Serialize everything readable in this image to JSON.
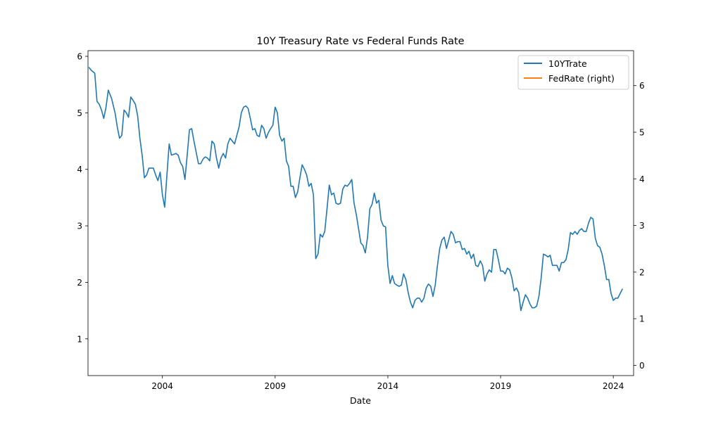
{
  "chart_data": {
    "type": "line",
    "title": "10Y Treasury Rate vs Federal Funds Rate",
    "xlabel": "Date",
    "ylabel": "",
    "x_ticks": [
      2004,
      2009,
      2014,
      2019,
      2024
    ],
    "xlim": [
      2000.7,
      2024.9
    ],
    "y_left": {
      "ylim": [
        0.35,
        6.1
      ],
      "ticks": [
        1,
        2,
        3,
        4,
        5,
        6
      ]
    },
    "y_right": {
      "ylim": [
        -0.22,
        6.75
      ],
      "ticks": [
        0,
        1,
        2,
        3,
        4,
        5,
        6
      ]
    },
    "legend": {
      "position": "top-right"
    },
    "grid": false,
    "series": [
      {
        "name": "10YTrate",
        "axis": "left",
        "color": "#1f77b4",
        "points": [
          [
            2000.75,
            5.8
          ],
          [
            2000.85,
            5.75
          ],
          [
            2001.0,
            5.7
          ],
          [
            2001.1,
            5.2
          ],
          [
            2001.2,
            5.15
          ],
          [
            2001.3,
            5.05
          ],
          [
            2001.4,
            4.9
          ],
          [
            2001.5,
            5.1
          ],
          [
            2001.6,
            5.4
          ],
          [
            2001.75,
            5.25
          ],
          [
            2001.9,
            5.0
          ],
          [
            2002.0,
            4.75
          ],
          [
            2002.1,
            4.55
          ],
          [
            2002.2,
            4.6
          ],
          [
            2002.3,
            5.05
          ],
          [
            2002.4,
            5.0
          ],
          [
            2002.5,
            4.92
          ],
          [
            2002.6,
            5.28
          ],
          [
            2002.7,
            5.22
          ],
          [
            2002.8,
            5.15
          ],
          [
            2002.9,
            4.95
          ],
          [
            2003.0,
            4.55
          ],
          [
            2003.1,
            4.25
          ],
          [
            2003.2,
            3.85
          ],
          [
            2003.3,
            3.9
          ],
          [
            2003.4,
            4.02
          ],
          [
            2003.6,
            4.02
          ],
          [
            2003.7,
            3.9
          ],
          [
            2003.8,
            3.8
          ],
          [
            2003.9,
            3.95
          ],
          [
            2004.0,
            3.55
          ],
          [
            2004.1,
            3.33
          ],
          [
            2004.2,
            3.9
          ],
          [
            2004.3,
            4.45
          ],
          [
            2004.4,
            4.25
          ],
          [
            2004.6,
            4.28
          ],
          [
            2004.7,
            4.25
          ],
          [
            2004.8,
            4.12
          ],
          [
            2004.9,
            4.05
          ],
          [
            2005.0,
            3.82
          ],
          [
            2005.1,
            4.25
          ],
          [
            2005.2,
            4.7
          ],
          [
            2005.3,
            4.72
          ],
          [
            2005.4,
            4.5
          ],
          [
            2005.5,
            4.3
          ],
          [
            2005.6,
            4.1
          ],
          [
            2005.7,
            4.1
          ],
          [
            2005.8,
            4.18
          ],
          [
            2005.9,
            4.22
          ],
          [
            2006.0,
            4.2
          ],
          [
            2006.1,
            4.15
          ],
          [
            2006.2,
            4.5
          ],
          [
            2006.3,
            4.45
          ],
          [
            2006.4,
            4.2
          ],
          [
            2006.5,
            4.02
          ],
          [
            2006.6,
            4.2
          ],
          [
            2006.7,
            4.28
          ],
          [
            2006.8,
            4.2
          ],
          [
            2006.9,
            4.45
          ],
          [
            2007.0,
            4.55
          ],
          [
            2007.1,
            4.5
          ],
          [
            2007.2,
            4.45
          ],
          [
            2007.3,
            4.6
          ],
          [
            2007.4,
            4.75
          ],
          [
            2007.5,
            5.0
          ],
          [
            2007.6,
            5.1
          ],
          [
            2007.7,
            5.12
          ],
          [
            2007.8,
            5.08
          ],
          [
            2007.9,
            4.9
          ],
          [
            2008.0,
            4.7
          ],
          [
            2008.1,
            4.72
          ],
          [
            2008.2,
            4.6
          ],
          [
            2008.3,
            4.58
          ],
          [
            2008.4,
            4.78
          ],
          [
            2008.5,
            4.72
          ],
          [
            2008.6,
            4.55
          ],
          [
            2008.7,
            4.65
          ],
          [
            2008.8,
            4.72
          ],
          [
            2008.9,
            4.78
          ],
          [
            2009.0,
            5.1
          ],
          [
            2009.1,
            5.0
          ],
          [
            2009.2,
            4.6
          ],
          [
            2009.3,
            4.5
          ],
          [
            2009.4,
            4.55
          ],
          [
            2009.5,
            4.15
          ],
          [
            2009.6,
            4.05
          ],
          [
            2009.7,
            3.7
          ],
          [
            2009.8,
            3.7
          ],
          [
            2009.9,
            3.5
          ],
          [
            2010.0,
            3.6
          ],
          [
            2010.1,
            3.85
          ],
          [
            2010.2,
            4.08
          ],
          [
            2010.3,
            4.0
          ],
          [
            2010.4,
            3.9
          ],
          [
            2010.5,
            3.7
          ],
          [
            2010.6,
            3.75
          ],
          [
            2010.7,
            3.55
          ],
          [
            2010.8,
            2.42
          ],
          [
            2010.9,
            2.5
          ],
          [
            2011.0,
            2.85
          ],
          [
            2011.1,
            2.8
          ],
          [
            2011.2,
            2.9
          ],
          [
            2011.3,
            3.3
          ],
          [
            2011.4,
            3.72
          ],
          [
            2011.5,
            3.55
          ],
          [
            2011.6,
            3.58
          ],
          [
            2011.7,
            3.4
          ],
          [
            2011.8,
            3.38
          ],
          [
            2011.9,
            3.4
          ],
          [
            2012.0,
            3.65
          ],
          [
            2012.1,
            3.72
          ],
          [
            2012.2,
            3.7
          ],
          [
            2012.3,
            3.75
          ],
          [
            2012.4,
            3.82
          ],
          [
            2012.5,
            3.4
          ],
          [
            2012.6,
            3.2
          ],
          [
            2012.7,
            2.95
          ],
          [
            2012.8,
            2.7
          ],
          [
            2012.9,
            2.65
          ],
          [
            2013.0,
            2.52
          ],
          [
            2013.1,
            2.8
          ],
          [
            2013.2,
            3.3
          ],
          [
            2013.3,
            3.38
          ],
          [
            2013.4,
            3.58
          ],
          [
            2013.5,
            3.4
          ],
          [
            2013.6,
            3.45
          ],
          [
            2013.7,
            3.1
          ],
          [
            2013.8,
            3.0
          ],
          [
            2013.9,
            2.98
          ],
          [
            2014.0,
            2.3
          ],
          [
            2014.1,
            1.98
          ],
          [
            2014.2,
            2.12
          ],
          [
            2014.3,
            1.98
          ],
          [
            2014.4,
            1.95
          ],
          [
            2014.5,
            1.93
          ],
          [
            2014.6,
            1.95
          ],
          [
            2014.7,
            2.15
          ],
          [
            2014.8,
            2.05
          ],
          [
            2014.9,
            1.82
          ],
          [
            2015.0,
            1.65
          ],
          [
            2015.1,
            1.55
          ],
          [
            2015.2,
            1.68
          ],
          [
            2015.3,
            1.72
          ],
          [
            2015.4,
            1.72
          ],
          [
            2015.5,
            1.65
          ],
          [
            2015.6,
            1.72
          ],
          [
            2015.7,
            1.9
          ],
          [
            2015.8,
            1.97
          ],
          [
            2015.9,
            1.93
          ],
          [
            2016.0,
            1.75
          ],
          [
            2016.1,
            1.95
          ],
          [
            2016.2,
            2.3
          ],
          [
            2016.3,
            2.6
          ],
          [
            2016.4,
            2.75
          ],
          [
            2016.5,
            2.8
          ],
          [
            2016.6,
            2.6
          ],
          [
            2016.7,
            2.75
          ],
          [
            2016.8,
            2.9
          ],
          [
            2016.9,
            2.85
          ],
          [
            2017.0,
            2.7
          ],
          [
            2017.1,
            2.72
          ],
          [
            2017.2,
            2.72
          ],
          [
            2017.3,
            2.58
          ],
          [
            2017.4,
            2.6
          ],
          [
            2017.5,
            2.5
          ],
          [
            2017.6,
            2.55
          ],
          [
            2017.7,
            2.42
          ],
          [
            2017.8,
            2.5
          ],
          [
            2017.9,
            2.3
          ],
          [
            2018.0,
            2.28
          ],
          [
            2018.1,
            2.38
          ],
          [
            2018.2,
            2.3
          ],
          [
            2018.3,
            2.02
          ],
          [
            2018.4,
            2.15
          ],
          [
            2018.5,
            2.22
          ],
          [
            2018.6,
            2.18
          ],
          [
            2018.7,
            2.58
          ],
          [
            2018.8,
            2.58
          ],
          [
            2018.9,
            2.4
          ],
          [
            2019.0,
            2.2
          ],
          [
            2019.1,
            2.2
          ],
          [
            2019.2,
            2.15
          ],
          [
            2019.3,
            2.25
          ],
          [
            2019.4,
            2.22
          ],
          [
            2019.5,
            2.08
          ],
          [
            2019.6,
            1.85
          ],
          [
            2019.7,
            1.9
          ],
          [
            2019.8,
            1.82
          ],
          [
            2019.9,
            1.5
          ],
          [
            2020.0,
            1.65
          ],
          [
            2020.1,
            1.78
          ],
          [
            2020.2,
            1.72
          ],
          [
            2020.3,
            1.62
          ],
          [
            2020.4,
            1.55
          ],
          [
            2020.5,
            1.55
          ],
          [
            2020.6,
            1.58
          ],
          [
            2020.7,
            1.75
          ],
          [
            2020.8,
            2.08
          ],
          [
            2020.9,
            2.5
          ],
          [
            2021.0,
            2.48
          ],
          [
            2021.1,
            2.45
          ],
          [
            2021.2,
            2.48
          ],
          [
            2021.3,
            2.3
          ],
          [
            2021.4,
            2.3
          ],
          [
            2021.5,
            2.3
          ],
          [
            2021.6,
            2.2
          ],
          [
            2021.7,
            2.35
          ],
          [
            2021.8,
            2.35
          ],
          [
            2021.9,
            2.4
          ],
          [
            2022.0,
            2.58
          ],
          [
            2022.1,
            2.88
          ],
          [
            2022.2,
            2.85
          ],
          [
            2022.3,
            2.9
          ],
          [
            2022.4,
            2.85
          ],
          [
            2022.5,
            2.92
          ],
          [
            2022.6,
            2.95
          ],
          [
            2022.7,
            2.9
          ],
          [
            2022.8,
            2.9
          ],
          [
            2022.9,
            3.05
          ],
          [
            2023.0,
            3.15
          ],
          [
            2023.1,
            3.12
          ],
          [
            2023.2,
            2.78
          ],
          [
            2023.3,
            2.65
          ],
          [
            2023.4,
            2.62
          ],
          [
            2023.5,
            2.5
          ],
          [
            2023.6,
            2.3
          ],
          [
            2023.7,
            2.05
          ],
          [
            2023.8,
            2.05
          ],
          [
            2023.9,
            1.8
          ],
          [
            2024.0,
            1.68
          ],
          [
            2024.1,
            1.72
          ],
          [
            2024.2,
            1.72
          ],
          [
            2024.3,
            1.8
          ],
          [
            2024.4,
            1.88
          ]
        ]
      },
      {
        "name": "FedRate (right)",
        "axis": "right",
        "color": "#ff7f0e",
        "points": []
      }
    ]
  }
}
